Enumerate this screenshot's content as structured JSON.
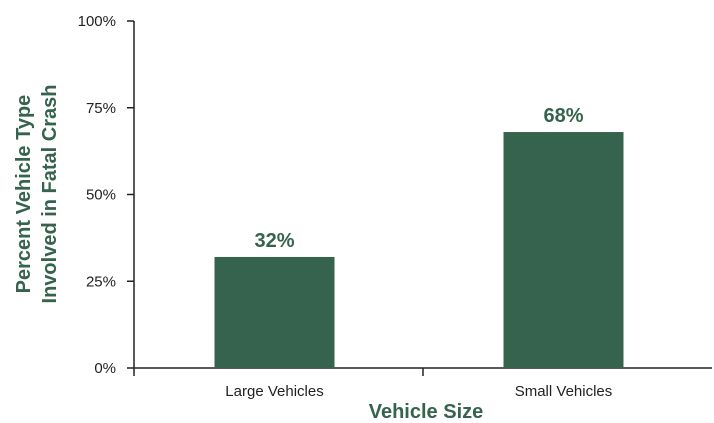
{
  "chart_data": {
    "type": "bar",
    "categories": [
      "Large Vehicles",
      "Small Vehicles"
    ],
    "values": [
      32,
      68
    ],
    "data_labels": [
      "32%",
      "68%"
    ],
    "xlabel": "Vehicle Size",
    "ylabel_lines": [
      "Percent Vehicle Type",
      "Involved in Fatal Crash"
    ],
    "yticks": [
      0,
      25,
      50,
      75,
      100
    ],
    "ytick_labels": [
      "0%",
      "25%",
      "50%",
      "75%",
      "100%"
    ],
    "ylim": [
      0,
      100
    ],
    "grid": false,
    "colors": {
      "bar": "#35634d",
      "text_accent": "#35634d",
      "axis": "#222222"
    }
  }
}
